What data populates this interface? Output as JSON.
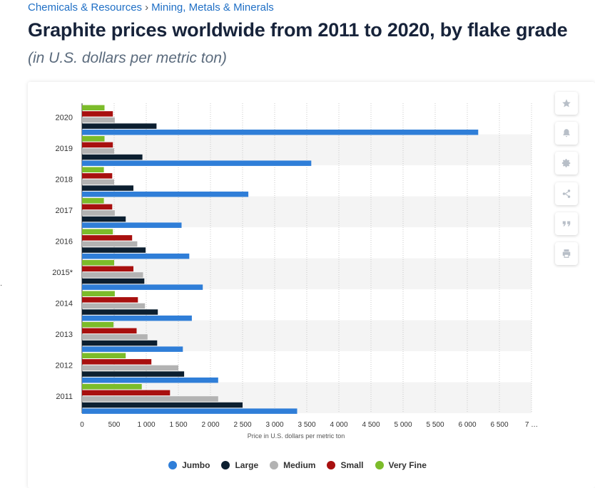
{
  "breadcrumb": {
    "item1": "Chemicals & Resources",
    "separator": "›",
    "item2": "Mining, Metals & Minerals"
  },
  "page_title": "Graphite prices worldwide from 2011 to 2020, by flake grade",
  "page_subtitle": "(in U.S. dollars per metric ton)",
  "toolbar_icons": [
    "star-icon",
    "bell-icon",
    "gear-icon",
    "share-icon",
    "quote-icon",
    "print-icon"
  ],
  "colors": {
    "Jumbo": "#2f7ed8",
    "Large": "#0c1f30",
    "Medium": "#b3b3b3",
    "Small": "#a8100f",
    "Very Fine": "#7cbc2a",
    "band": "#f4f4f4",
    "grid": "#c8c8c8"
  },
  "chart_data": {
    "type": "bar",
    "orientation": "horizontal",
    "categories": [
      "2020",
      "2019",
      "2018",
      "2017",
      "2016",
      "2015*",
      "2014",
      "2013",
      "2012",
      "2011"
    ],
    "series": [
      {
        "name": "Very Fine",
        "values": [
          350,
          350,
          340,
          340,
          480,
          500,
          510,
          490,
          680,
          930
        ]
      },
      {
        "name": "Small",
        "values": [
          480,
          480,
          470,
          470,
          780,
          800,
          870,
          850,
          1080,
          1370
        ]
      },
      {
        "name": "Medium",
        "values": [
          510,
          500,
          500,
          510,
          860,
          950,
          980,
          1020,
          1500,
          2120
        ]
      },
      {
        "name": "Large",
        "values": [
          1160,
          940,
          800,
          680,
          990,
          970,
          1180,
          1170,
          1590,
          2500
        ]
      },
      {
        "name": "Jumbo",
        "values": [
          6170,
          3570,
          2590,
          1550,
          1670,
          1880,
          1710,
          1570,
          2120,
          3350
        ]
      }
    ],
    "xlabel": "Price in U.S. dollars per metric ton",
    "ylabel": "",
    "xlim": [
      0,
      7000
    ],
    "x_ticks": [
      "0",
      "500",
      "1 000",
      "1 500",
      "2 000",
      "2 500",
      "3 000",
      "3 500",
      "4 000",
      "4 500",
      "5 000",
      "5 500",
      "6 000",
      "6 500",
      "7 …"
    ],
    "legend": [
      "Jumbo",
      "Large",
      "Medium",
      "Small",
      "Very Fine"
    ],
    "legend_position": "bottom",
    "grid": true
  }
}
